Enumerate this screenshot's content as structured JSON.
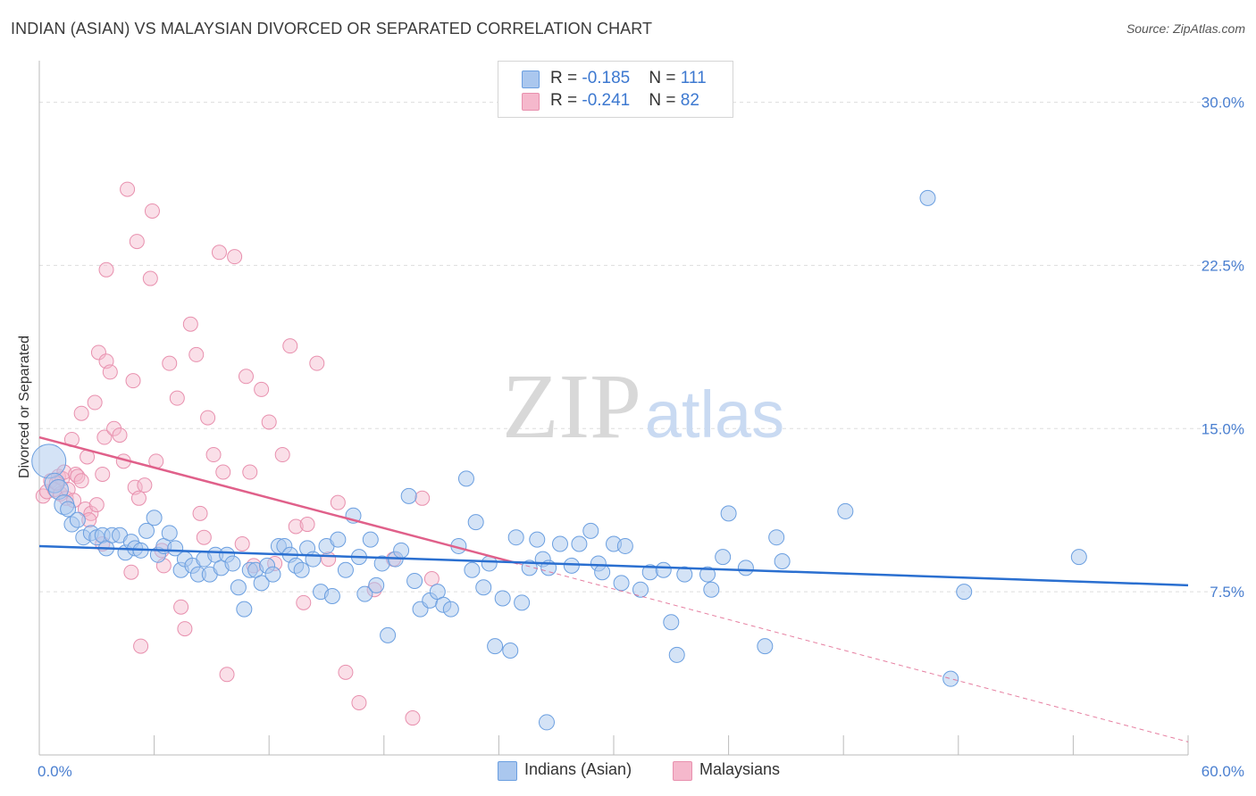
{
  "title": "INDIAN (ASIAN) VS MALAYSIAN DIVORCED OR SEPARATED CORRELATION CHART",
  "source": "Source: ZipAtlas.com",
  "watermark": {
    "zip": "ZIP",
    "atlas": "atlas"
  },
  "legend": {
    "rows": [
      {
        "r_label": "R = ",
        "r_value": "-0.185",
        "n_label": "N = ",
        "n_value": "111"
      },
      {
        "r_label": "R = ",
        "r_value": "-0.241",
        "n_label": "N = ",
        "n_value": "82"
      }
    ]
  },
  "colors": {
    "blue_fill": "#aac7ee",
    "blue_stroke": "#6b9fe0",
    "blue_line": "#2a6fd0",
    "pink_fill": "#f5b8cc",
    "pink_stroke": "#e890ae",
    "pink_line": "#e0608a",
    "tick_text": "#4a7fd0",
    "grid": "#dddddd"
  },
  "chart_data": {
    "type": "scatter",
    "title": "INDIAN (ASIAN) VS MALAYSIAN DIVORCED OR SEPARATED CORRELATION CHART",
    "xlabel": "",
    "ylabel": "Divorced or Separated",
    "xlim": [
      0,
      60
    ],
    "ylim": [
      0,
      31.5
    ],
    "x_tick_labels": [
      "0.0%",
      "60.0%"
    ],
    "y_ticks": [
      7.5,
      15.0,
      22.5,
      30.0
    ],
    "y_tick_labels": [
      "7.5%",
      "15.0%",
      "22.5%",
      "30.0%"
    ],
    "grid": true,
    "legend_position": "top-center",
    "series": [
      {
        "name": "Indians (Asian)",
        "color": "blue",
        "trend": {
          "x": [
            0,
            60
          ],
          "y": [
            9.6,
            7.8
          ]
        },
        "points": [
          [
            0.5,
            13.5
          ],
          [
            0.8,
            12.5
          ],
          [
            1.0,
            12.2
          ],
          [
            1.3,
            11.5
          ],
          [
            1.5,
            11.3
          ],
          [
            1.7,
            10.6
          ],
          [
            2.0,
            10.8
          ],
          [
            2.3,
            10.0
          ],
          [
            2.7,
            10.2
          ],
          [
            3.0,
            10.0
          ],
          [
            3.3,
            10.1
          ],
          [
            3.5,
            9.5
          ],
          [
            3.8,
            10.1
          ],
          [
            4.2,
            10.1
          ],
          [
            4.5,
            9.3
          ],
          [
            4.8,
            9.8
          ],
          [
            5.0,
            9.5
          ],
          [
            5.3,
            9.4
          ],
          [
            5.6,
            10.3
          ],
          [
            6.0,
            10.9
          ],
          [
            6.2,
            9.2
          ],
          [
            6.5,
            9.6
          ],
          [
            6.8,
            10.2
          ],
          [
            7.1,
            9.5
          ],
          [
            7.4,
            8.5
          ],
          [
            7.6,
            9.0
          ],
          [
            8.0,
            8.7
          ],
          [
            8.3,
            8.3
          ],
          [
            8.6,
            9.0
          ],
          [
            8.9,
            8.3
          ],
          [
            9.2,
            9.2
          ],
          [
            9.5,
            8.6
          ],
          [
            9.8,
            9.2
          ],
          [
            10.1,
            8.8
          ],
          [
            10.4,
            7.7
          ],
          [
            10.7,
            6.7
          ],
          [
            11.0,
            8.5
          ],
          [
            11.3,
            8.5
          ],
          [
            11.6,
            7.9
          ],
          [
            11.9,
            8.7
          ],
          [
            12.2,
            8.3
          ],
          [
            12.5,
            9.6
          ],
          [
            12.8,
            9.6
          ],
          [
            13.1,
            9.2
          ],
          [
            13.4,
            8.7
          ],
          [
            13.7,
            8.5
          ],
          [
            14.0,
            9.5
          ],
          [
            14.3,
            9.0
          ],
          [
            14.7,
            7.5
          ],
          [
            15.0,
            9.6
          ],
          [
            15.3,
            7.3
          ],
          [
            15.6,
            9.9
          ],
          [
            16.0,
            8.5
          ],
          [
            16.4,
            11.0
          ],
          [
            16.7,
            9.1
          ],
          [
            17.0,
            7.4
          ],
          [
            17.3,
            9.9
          ],
          [
            17.6,
            7.8
          ],
          [
            17.9,
            8.8
          ],
          [
            18.2,
            5.5
          ],
          [
            18.6,
            9.0
          ],
          [
            18.9,
            9.4
          ],
          [
            19.3,
            11.9
          ],
          [
            19.6,
            8.0
          ],
          [
            19.9,
            6.7
          ],
          [
            20.4,
            7.1
          ],
          [
            20.8,
            7.5
          ],
          [
            21.1,
            6.9
          ],
          [
            21.5,
            6.7
          ],
          [
            21.9,
            9.6
          ],
          [
            22.3,
            12.7
          ],
          [
            22.6,
            8.5
          ],
          [
            22.8,
            10.7
          ],
          [
            23.2,
            7.7
          ],
          [
            23.5,
            8.8
          ],
          [
            23.8,
            5.0
          ],
          [
            24.2,
            7.2
          ],
          [
            24.6,
            4.8
          ],
          [
            24.9,
            10.0
          ],
          [
            25.2,
            7.0
          ],
          [
            25.6,
            8.6
          ],
          [
            26.0,
            9.9
          ],
          [
            26.3,
            9.0
          ],
          [
            26.6,
            8.6
          ],
          [
            27.2,
            9.7
          ],
          [
            27.8,
            8.7
          ],
          [
            28.2,
            9.7
          ],
          [
            28.8,
            10.3
          ],
          [
            29.2,
            8.8
          ],
          [
            29.4,
            8.4
          ],
          [
            30.0,
            9.7
          ],
          [
            30.4,
            7.9
          ],
          [
            30.6,
            9.6
          ],
          [
            31.4,
            7.6
          ],
          [
            31.9,
            8.4
          ],
          [
            32.6,
            8.5
          ],
          [
            33.0,
            6.1
          ],
          [
            33.3,
            4.6
          ],
          [
            33.7,
            8.3
          ],
          [
            34.9,
            8.3
          ],
          [
            35.1,
            7.6
          ],
          [
            35.7,
            9.1
          ],
          [
            36.0,
            11.1
          ],
          [
            36.9,
            8.6
          ],
          [
            37.9,
            5.0
          ],
          [
            38.5,
            10.0
          ],
          [
            38.8,
            8.9
          ],
          [
            42.1,
            11.2
          ],
          [
            46.4,
            25.6
          ],
          [
            47.6,
            3.5
          ],
          [
            48.3,
            7.5
          ],
          [
            54.3,
            9.1
          ],
          [
            26.5,
            1.5
          ]
        ]
      },
      {
        "name": "Malaysians",
        "color": "pink",
        "trend": {
          "x": [
            0,
            25
          ],
          "y": [
            14.6,
            8.8
          ]
        },
        "trend_dashed": {
          "x": [
            25,
            60
          ],
          "y": [
            8.8,
            0.6
          ]
        },
        "points": [
          [
            0.2,
            11.9
          ],
          [
            0.4,
            12.1
          ],
          [
            0.6,
            12.6
          ],
          [
            0.8,
            12.2
          ],
          [
            1.0,
            12.8
          ],
          [
            1.1,
            12.0
          ],
          [
            1.2,
            12.7
          ],
          [
            1.3,
            13.0
          ],
          [
            1.4,
            11.8
          ],
          [
            1.5,
            12.2
          ],
          [
            1.7,
            14.5
          ],
          [
            1.9,
            12.9
          ],
          [
            2.0,
            12.8
          ],
          [
            2.2,
            15.7
          ],
          [
            2.4,
            11.3
          ],
          [
            2.5,
            13.7
          ],
          [
            2.7,
            11.1
          ],
          [
            2.9,
            16.2
          ],
          [
            3.0,
            11.5
          ],
          [
            3.1,
            18.5
          ],
          [
            3.3,
            9.7
          ],
          [
            3.4,
            14.6
          ],
          [
            3.5,
            18.1
          ],
          [
            3.7,
            17.6
          ],
          [
            3.9,
            15.0
          ],
          [
            4.2,
            14.7
          ],
          [
            4.4,
            13.5
          ],
          [
            4.6,
            26.0
          ],
          [
            4.8,
            8.4
          ],
          [
            4.9,
            17.2
          ],
          [
            5.0,
            12.3
          ],
          [
            5.2,
            11.8
          ],
          [
            5.3,
            5.0
          ],
          [
            5.5,
            12.4
          ],
          [
            5.8,
            21.9
          ],
          [
            5.9,
            25.0
          ],
          [
            6.1,
            13.5
          ],
          [
            6.4,
            9.4
          ],
          [
            6.5,
            8.7
          ],
          [
            6.8,
            18.0
          ],
          [
            7.2,
            16.4
          ],
          [
            7.4,
            6.8
          ],
          [
            7.6,
            5.8
          ],
          [
            7.9,
            19.8
          ],
          [
            8.2,
            18.4
          ],
          [
            8.4,
            11.1
          ],
          [
            8.6,
            10.0
          ],
          [
            8.8,
            15.5
          ],
          [
            9.1,
            13.8
          ],
          [
            9.4,
            23.1
          ],
          [
            9.6,
            13.0
          ],
          [
            9.8,
            3.7
          ],
          [
            10.2,
            22.9
          ],
          [
            10.6,
            9.7
          ],
          [
            10.8,
            17.4
          ],
          [
            11.0,
            13.0
          ],
          [
            11.2,
            8.7
          ],
          [
            11.6,
            16.8
          ],
          [
            12.0,
            15.3
          ],
          [
            12.3,
            8.8
          ],
          [
            12.7,
            13.8
          ],
          [
            13.1,
            18.8
          ],
          [
            13.4,
            10.5
          ],
          [
            13.8,
            7.0
          ],
          [
            14.0,
            10.6
          ],
          [
            14.5,
            18.0
          ],
          [
            15.1,
            9.0
          ],
          [
            15.6,
            11.6
          ],
          [
            16.0,
            3.8
          ],
          [
            16.7,
            2.4
          ],
          [
            17.5,
            7.6
          ],
          [
            18.5,
            9.0
          ],
          [
            19.5,
            1.7
          ],
          [
            20.0,
            11.8
          ],
          [
            20.5,
            8.1
          ],
          [
            3.5,
            22.3
          ],
          [
            2.2,
            12.6
          ],
          [
            5.1,
            23.6
          ],
          [
            3.3,
            12.9
          ],
          [
            1.8,
            11.7
          ],
          [
            2.6,
            10.8
          ],
          [
            0.9,
            12.5
          ]
        ]
      }
    ]
  },
  "bottom_legend": [
    {
      "label": "Indians (Asian)"
    },
    {
      "label": "Malaysians"
    }
  ]
}
